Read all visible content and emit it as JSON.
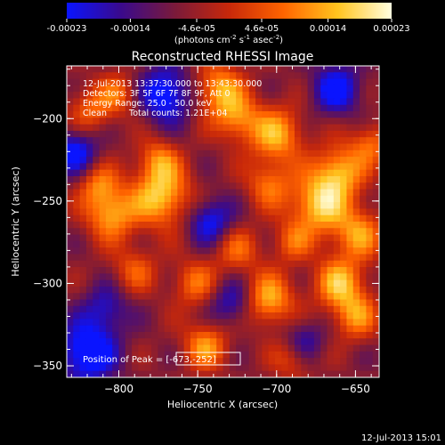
{
  "colorbar": {
    "ticks": [
      "-0.00023",
      "-0.00014",
      "-4.6e-05",
      "4.6e-05",
      "0.00014",
      "0.00023"
    ],
    "tick_values": [
      -0.00023,
      -0.00014,
      -4.6e-05,
      4.6e-05,
      0.00014,
      0.00023
    ],
    "range": [
      -0.00023,
      0.00023
    ],
    "units_prefix": "(photons cm",
    "units_sup1": "-2",
    "units_mid": " s",
    "units_sup2": "-1",
    "units_mid2": " asec",
    "units_sup3": "-2",
    "units_suffix": ")",
    "colors": [
      "#0a14ff",
      "#3a0a8c",
      "#7a1a3a",
      "#c8280a",
      "#ff6400",
      "#ffc41e",
      "#ffffe0"
    ]
  },
  "chart_data": {
    "type": "heatmap",
    "title": "Reconstructed RHESSI Image",
    "xlabel": "Heliocentric X (arcsec)",
    "ylabel": "Heliocentric Y (arcsec)",
    "xlim": [
      -833,
      -635
    ],
    "ylim": [
      -357,
      -168
    ],
    "x_ticks": [
      -800,
      -750,
      -700,
      -650
    ],
    "x_tick_labels": [
      "−800",
      "−750",
      "−700",
      "−650"
    ],
    "y_ticks": [
      -350,
      -300,
      -250,
      -200
    ],
    "y_tick_labels": [
      "−350",
      "−300",
      "−250",
      "−200"
    ],
    "peak": [
      -673,
      -252
    ],
    "hotspots": [
      {
        "x": -773,
        "y": -247,
        "v": 1.0,
        "r": 13
      },
      {
        "x": -805,
        "y": -258,
        "v": 0.85,
        "r": 11
      },
      {
        "x": -813,
        "y": -240,
        "v": 0.6,
        "r": 9
      },
      {
        "x": -737,
        "y": -182,
        "v": 0.85,
        "r": 11
      },
      {
        "x": -725,
        "y": -200,
        "v": 0.7,
        "r": 10
      },
      {
        "x": -700,
        "y": -210,
        "v": 0.85,
        "r": 12
      },
      {
        "x": -705,
        "y": -240,
        "v": 0.6,
        "r": 10
      },
      {
        "x": -673,
        "y": -252,
        "v": 1.0,
        "r": 13
      },
      {
        "x": -660,
        "y": -232,
        "v": 0.85,
        "r": 11
      },
      {
        "x": -648,
        "y": -270,
        "v": 0.75,
        "r": 11
      },
      {
        "x": -660,
        "y": -300,
        "v": 0.9,
        "r": 11
      },
      {
        "x": -650,
        "y": -320,
        "v": 0.7,
        "r": 10
      },
      {
        "x": -705,
        "y": -310,
        "v": 0.9,
        "r": 11
      },
      {
        "x": -725,
        "y": -280,
        "v": 0.55,
        "r": 10
      },
      {
        "x": -752,
        "y": -300,
        "v": 0.6,
        "r": 10
      },
      {
        "x": -745,
        "y": -338,
        "v": 0.75,
        "r": 10
      },
      {
        "x": -790,
        "y": -292,
        "v": 0.5,
        "r": 10
      },
      {
        "x": -818,
        "y": -195,
        "v": 0.55,
        "r": 10
      },
      {
        "x": -800,
        "y": -185,
        "v": 0.55,
        "r": 9
      },
      {
        "x": -690,
        "y": -345,
        "v": 0.5,
        "r": 9
      },
      {
        "x": -775,
        "y": -225,
        "v": 0.6,
        "r": 9
      },
      {
        "x": -640,
        "y": -215,
        "v": 0.6,
        "r": 9
      },
      {
        "x": -690,
        "y": -275,
        "v": 0.5,
        "r": 9
      }
    ],
    "coldspots": [
      {
        "x": -820,
        "y": -342,
        "v": -1.0,
        "r": 13
      },
      {
        "x": -828,
        "y": -220,
        "v": -0.8,
        "r": 10
      },
      {
        "x": -770,
        "y": -185,
        "v": -0.9,
        "r": 12
      },
      {
        "x": -742,
        "y": -262,
        "v": -0.75,
        "r": 10
      },
      {
        "x": -662,
        "y": -182,
        "v": -0.8,
        "r": 11
      },
      {
        "x": -728,
        "y": -312,
        "v": -0.6,
        "r": 10
      },
      {
        "x": -683,
        "y": -335,
        "v": -0.55,
        "r": 9
      },
      {
        "x": -808,
        "y": -315,
        "v": -0.55,
        "r": 10
      }
    ]
  },
  "info": {
    "line1": "12-Jul-2013 13:37:30.000 to 13:43:30.000",
    "line2": "Detectors: 3F 5F 6F 7F 8F 9F, Att 0",
    "line3": "Energy Range: 25.0 - 50.0 keV",
    "line4_a": "Clean",
    "line4_b": "Total counts: 1.21E+04"
  },
  "peak_label": "Position of Peak = ",
  "peak_value": "[-673,-252]",
  "timestamp": "12-Jul-2013 15:01"
}
